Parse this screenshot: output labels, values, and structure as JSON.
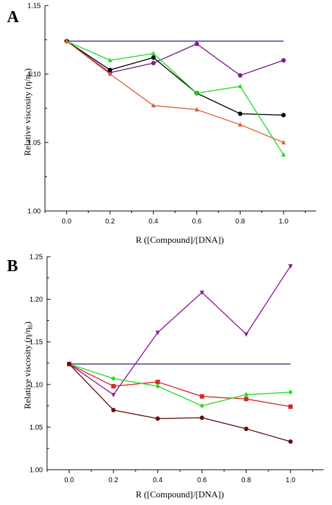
{
  "chart_data": [
    {
      "type": "line",
      "panel": "A",
      "xlabel": "R ([Compound]/[DNA])",
      "ylabel": "Relative viscosity (η/η",
      "ylabel_sub": "0",
      "ylabel_tail": ")",
      "x_ticks": [
        "0.0",
        "0.2",
        "0.4",
        "0.6",
        "0.8",
        "1.0"
      ],
      "y_ticks": [
        "1.00",
        "1.05",
        "1.10",
        "1.15"
      ],
      "xlim": [
        -0.1,
        1.15
      ],
      "ylim": [
        1.0,
        1.15
      ],
      "grid": false,
      "series": [
        {
          "color": "#2b2b8f",
          "marker": "none",
          "x": [
            0.0,
            1.0
          ],
          "y": [
            1.124,
            1.124
          ]
        },
        {
          "color": "#7b1f8a",
          "marker": "circle",
          "x": [
            0.0,
            0.2,
            0.4,
            0.6,
            0.8,
            1.0
          ],
          "y": [
            1.124,
            1.101,
            1.108,
            1.122,
            1.099,
            1.11
          ]
        },
        {
          "color": "#000000",
          "marker": "circle",
          "x": [
            0.0,
            0.2,
            0.4,
            0.6,
            0.8,
            1.0
          ],
          "y": [
            1.124,
            1.103,
            1.112,
            1.086,
            1.071,
            1.07
          ]
        },
        {
          "color": "#22dd22",
          "marker": "triangle",
          "x": [
            0.0,
            0.2,
            0.4,
            0.6,
            0.8,
            1.0
          ],
          "y": [
            1.124,
            1.11,
            1.115,
            1.086,
            1.091,
            1.041
          ]
        },
        {
          "color": "#d9603b",
          "marker": "triangle",
          "x": [
            0.0,
            0.2,
            0.4,
            0.6,
            0.8,
            1.0
          ],
          "y": [
            1.124,
            1.1,
            1.077,
            1.074,
            1.063,
            1.05
          ]
        }
      ]
    },
    {
      "type": "line",
      "panel": "B",
      "xlabel": "R ([Compound]/[DNA])",
      "ylabel": "Relative viscosity (η/η",
      "ylabel_sub": "0",
      "ylabel_tail": ")",
      "x_ticks": [
        "0.0",
        "0.2",
        "0.4",
        "0.6",
        "0.8",
        "1.0"
      ],
      "y_ticks": [
        "1.00",
        "1.05",
        "1.10",
        "1.15",
        "1.20",
        "1.25"
      ],
      "xlim": [
        -0.1,
        1.15
      ],
      "ylim": [
        1.0,
        1.25
      ],
      "grid": false,
      "series": [
        {
          "color": "#2b2b8f",
          "marker": "none",
          "x": [
            0.0,
            1.0
          ],
          "y": [
            1.124,
            1.124
          ]
        },
        {
          "color": "#8e1b8e",
          "marker": "triangle-down",
          "x": [
            0.0,
            0.2,
            0.4,
            0.6,
            0.8,
            1.0
          ],
          "y": [
            1.124,
            1.088,
            1.161,
            1.208,
            1.159,
            1.239
          ]
        },
        {
          "color": "#d42a2a",
          "marker": "square",
          "x": [
            0.0,
            0.2,
            0.4,
            0.6,
            0.8,
            1.0
          ],
          "y": [
            1.124,
            1.098,
            1.103,
            1.086,
            1.083,
            1.074
          ]
        },
        {
          "color": "#22dd22",
          "marker": "diamond",
          "x": [
            0.0,
            0.2,
            0.4,
            0.6,
            0.8,
            1.0
          ],
          "y": [
            1.124,
            1.107,
            1.098,
            1.075,
            1.088,
            1.091
          ]
        },
        {
          "color": "#6b1010",
          "marker": "circle",
          "x": [
            0.0,
            0.2,
            0.4,
            0.6,
            0.8,
            1.0
          ],
          "y": [
            1.124,
            1.07,
            1.06,
            1.061,
            1.048,
            1.033
          ]
        }
      ]
    }
  ]
}
